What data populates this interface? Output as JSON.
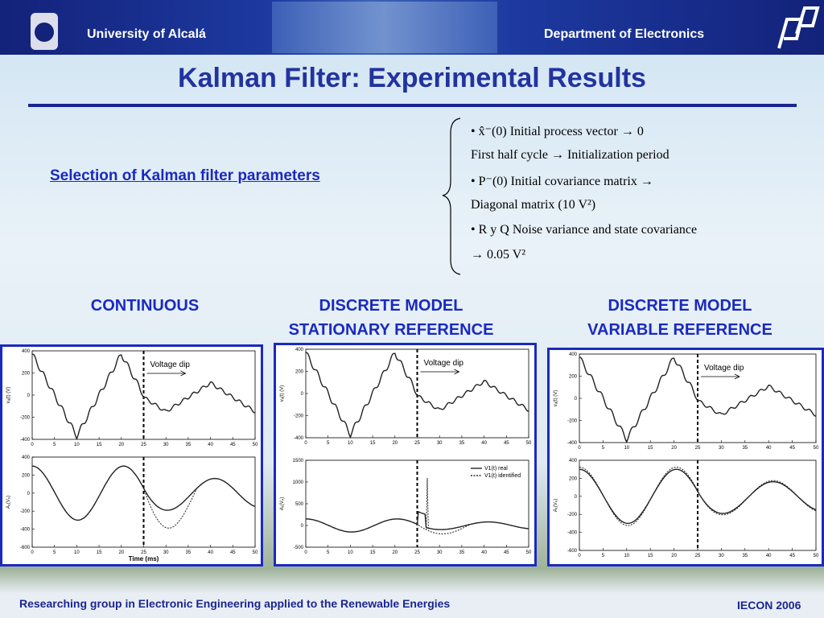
{
  "header": {
    "university": "University of Alcalá",
    "department": "Department of Electronics"
  },
  "title": "Kalman Filter: Experimental Results",
  "link": "Selection of Kalman filter parameters",
  "parameters": [
    "• x̂⁻(0)   Initial process vector → 0",
    "First half cycle → Initialization period",
    "• P⁻(0) Initial covariance matrix →",
    "Diagonal matrix (10 V²)",
    "• R y Q  Noise variance and state covariance",
    "→ 0.05 V²"
  ],
  "columns": [
    [
      "CONTINUOUS"
    ],
    [
      "DISCRETE MODEL",
      "STATIONARY REFERENCE"
    ],
    [
      "DISCRETE MODEL",
      "VARIABLE REFERENCE"
    ]
  ],
  "panels": [
    {
      "top": {
        "ylabel": "vₐ(t) (V)",
        "yticks": [
          "400",
          "200",
          "0",
          "-200",
          "-400"
        ],
        "xticks": [
          "0",
          "5",
          "10",
          "15",
          "20",
          "25",
          "30",
          "35",
          "40",
          "45",
          "50"
        ],
        "annotation": "Voltage dip"
      },
      "bottom": {
        "ylabel": "A₁(Vₚ)",
        "yticks": [
          "400",
          "200",
          "0",
          "-200",
          "-400",
          "-600"
        ],
        "xticks": [
          "0",
          "5",
          "10",
          "15",
          "20",
          "25",
          "30",
          "35",
          "40",
          "45",
          "50"
        ],
        "xlabel": "Time (ms)"
      }
    },
    {
      "top": {
        "ylabel": "vₐ(t) (V)",
        "yticks": [
          "400",
          "200",
          "0",
          "-200",
          "-400"
        ],
        "xticks": [
          "0",
          "5",
          "10",
          "15",
          "20",
          "25",
          "30",
          "35",
          "40",
          "45",
          "50"
        ],
        "annotation": "Voltage dip"
      },
      "bottom": {
        "ylabel": "A₁(Vₚ)",
        "yticks": [
          "1500",
          "1000",
          "500",
          "0",
          "-500"
        ],
        "xticks": [
          "0",
          "5",
          "10",
          "15",
          "20",
          "25",
          "30",
          "35",
          "40",
          "45",
          "50"
        ],
        "legend": [
          "V1(t) real",
          "V1(t) identified"
        ]
      }
    },
    {
      "top": {
        "ylabel": "vₐ(t) (V)",
        "yticks": [
          "400",
          "200",
          "0",
          "-200",
          "-400"
        ],
        "xticks": [
          "0",
          "5",
          "10",
          "15",
          "20",
          "25",
          "30",
          "35",
          "40",
          "45",
          "50"
        ],
        "annotation": "Voltage dip"
      },
      "bottom": {
        "ylabel": "A₁(Vₚ)",
        "yticks": [
          "400",
          "200",
          "0",
          "-200",
          "-400",
          "-600"
        ],
        "xticks": [
          "0",
          "5",
          "10",
          "15",
          "20",
          "25",
          "30",
          "35",
          "40",
          "45",
          "50"
        ]
      }
    }
  ],
  "footer": {
    "group": "Researching group in Electronic Engineering applied to the Renewable Energies",
    "event": "IECON 2006"
  }
}
